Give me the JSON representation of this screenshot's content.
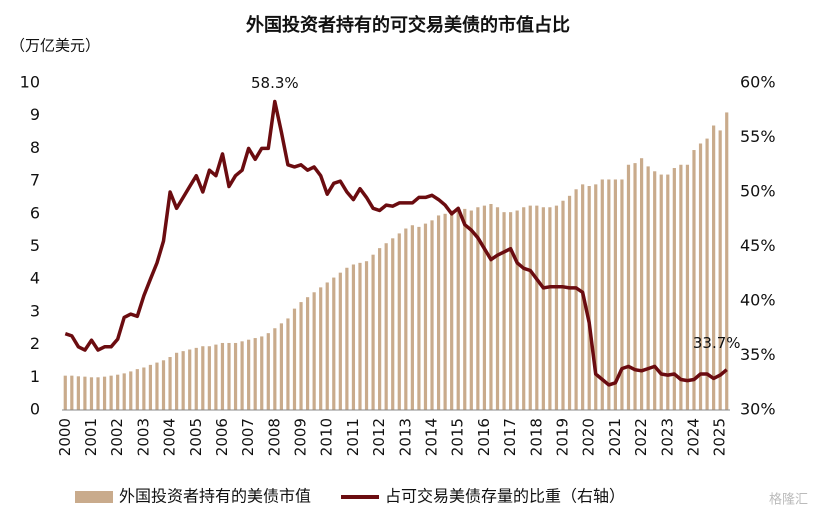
{
  "chart_data": {
    "type": "bar-line",
    "title": "外国投资者持有的可交易美债的市值占比",
    "y_axis_label": "（万亿美元）",
    "watermark": "格隆汇",
    "categories": [
      "2000",
      null,
      null,
      null,
      "2001",
      null,
      null,
      null,
      "2002",
      null,
      null,
      null,
      "2003",
      null,
      null,
      null,
      "2004",
      null,
      null,
      null,
      "2005",
      null,
      null,
      null,
      "2006",
      null,
      null,
      null,
      "2007",
      null,
      null,
      null,
      "2008",
      null,
      null,
      null,
      "2009",
      null,
      null,
      null,
      "2010",
      null,
      null,
      null,
      "2011",
      null,
      null,
      null,
      "2012",
      null,
      null,
      null,
      "2013",
      null,
      null,
      null,
      "2014",
      null,
      null,
      null,
      "2015",
      null,
      null,
      null,
      "2016",
      null,
      null,
      null,
      "2017",
      null,
      null,
      null,
      "2018",
      null,
      null,
      null,
      "2019",
      null,
      null,
      null,
      "2020",
      null,
      null,
      null,
      "2021",
      null,
      null,
      null,
      "2022",
      null,
      null,
      null,
      "2023",
      null,
      null,
      null,
      "2024",
      null,
      null,
      null,
      "2025",
      null
    ],
    "series": [
      {
        "name": "外国投资者持有的美债市值",
        "type": "bar",
        "color": "#c9ab8c",
        "values": [
          1.05,
          1.05,
          1.03,
          1.02,
          1.0,
          1.0,
          1.02,
          1.05,
          1.08,
          1.12,
          1.18,
          1.25,
          1.3,
          1.38,
          1.45,
          1.52,
          1.62,
          1.75,
          1.8,
          1.85,
          1.9,
          1.95,
          1.95,
          2.0,
          2.05,
          2.05,
          2.05,
          2.1,
          2.15,
          2.2,
          2.25,
          2.35,
          2.5,
          2.65,
          2.8,
          3.1,
          3.3,
          3.45,
          3.6,
          3.75,
          3.9,
          4.05,
          4.2,
          4.35,
          4.45,
          4.5,
          4.55,
          4.75,
          4.95,
          5.1,
          5.25,
          5.4,
          5.55,
          5.65,
          5.6,
          5.7,
          5.8,
          5.95,
          6.0,
          6.1,
          6.15,
          6.15,
          6.1,
          6.2,
          6.25,
          6.3,
          6.2,
          6.05,
          6.05,
          6.1,
          6.2,
          6.25,
          6.25,
          6.2,
          6.2,
          6.25,
          6.4,
          6.55,
          6.75,
          6.9,
          6.85,
          6.9,
          7.05,
          7.05,
          7.05,
          7.05,
          7.5,
          7.55,
          7.7,
          7.45,
          7.3,
          7.2,
          7.2,
          7.4,
          7.5,
          7.5,
          7.95,
          8.15,
          8.3,
          8.7,
          8.55,
          9.1
        ]
      },
      {
        "name": "占可交易美债存量的比重（右轴）",
        "type": "line",
        "axis": "y2",
        "color": "#6b0c10",
        "values": [
          37.0,
          36.8,
          35.8,
          35.5,
          36.4,
          35.5,
          35.8,
          35.8,
          36.5,
          38.5,
          38.8,
          38.6,
          40.5,
          42.0,
          43.5,
          45.5,
          50.0,
          48.5,
          49.5,
          50.5,
          51.5,
          50.0,
          52.0,
          51.5,
          53.5,
          50.5,
          51.5,
          52.0,
          54.0,
          53.0,
          54.0,
          54.0,
          58.3,
          55.5,
          52.5,
          52.3,
          52.5,
          52.0,
          52.3,
          51.5,
          49.8,
          50.8,
          51.0,
          50.0,
          49.3,
          50.3,
          49.5,
          48.5,
          48.3,
          48.8,
          48.7,
          49.0,
          49.0,
          49.0,
          49.5,
          49.5,
          49.7,
          49.3,
          48.8,
          48.0,
          48.5,
          47.0,
          46.5,
          45.8,
          44.8,
          43.8,
          44.2,
          44.5,
          44.8,
          43.5,
          43.0,
          42.8,
          42.0,
          41.2,
          41.3,
          41.3,
          41.3,
          41.2,
          41.2,
          40.8,
          38.0,
          33.3,
          32.8,
          32.3,
          32.5,
          33.8,
          34.0,
          33.7,
          33.6,
          33.8,
          34.0,
          33.3,
          33.2,
          33.3,
          32.8,
          32.7,
          32.8,
          33.3,
          33.3,
          32.9,
          33.2,
          33.7
        ],
        "value_labels": [
          null,
          null,
          null,
          null,
          null,
          null,
          null,
          null,
          null,
          null,
          null,
          null,
          null,
          null,
          null,
          null,
          null,
          null,
          null,
          null,
          null,
          null,
          null,
          null,
          null,
          null,
          null,
          null,
          null,
          null,
          null,
          null,
          "58.3%",
          null,
          null,
          null,
          null,
          null,
          null,
          null,
          null,
          null,
          null,
          null,
          null,
          null,
          null,
          null,
          null,
          null,
          null,
          null,
          null,
          null,
          null,
          null,
          null,
          null,
          null,
          null,
          null,
          null,
          null,
          null,
          null,
          null,
          null,
          null,
          null,
          null,
          null,
          null,
          null,
          null,
          null,
          null,
          null,
          null,
          null,
          null,
          null,
          null,
          null,
          null,
          null,
          null,
          null,
          null,
          null,
          null,
          null,
          null,
          null,
          null,
          null,
          null,
          null,
          null,
          null,
          null,
          null,
          "33.7%"
        ]
      }
    ],
    "ylim": [
      0,
      10
    ],
    "yticks": [
      0,
      1,
      2,
      3,
      4,
      5,
      6,
      7,
      8,
      9,
      10
    ],
    "y2lim": [
      30,
      60
    ],
    "y2ticks": [
      {
        "value": 30,
        "label": "30%"
      },
      {
        "value": 35,
        "label": "35%"
      },
      {
        "value": 40,
        "label": "40%"
      },
      {
        "value": 45,
        "label": "45%"
      },
      {
        "value": 50,
        "label": "50%"
      },
      {
        "value": 55,
        "label": "55%"
      },
      {
        "value": 60,
        "label": "60%"
      }
    ],
    "grid": false,
    "legend": "bottom"
  }
}
